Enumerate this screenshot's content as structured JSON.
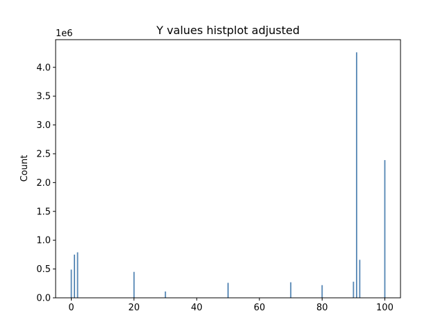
{
  "chart_data": {
    "type": "bar",
    "title": "Y values histplot adjusted",
    "xlabel": "",
    "ylabel": "Count",
    "y_offset_text": "1e6",
    "xlim": [
      -5,
      105
    ],
    "ylim": [
      0,
      4480000
    ],
    "x_ticks": [
      0,
      20,
      40,
      60,
      80,
      100
    ],
    "y_ticks": [
      0.0,
      0.5,
      1.0,
      1.5,
      2.0,
      2.5,
      3.0,
      3.5,
      4.0
    ],
    "y_tick_labels": [
      "0.0",
      "0.5",
      "1.0",
      "1.5",
      "2.0",
      "2.5",
      "3.0",
      "3.5",
      "4.0"
    ],
    "y_scale": 1000000,
    "bin_width": 0.4,
    "bar_color": "#4c7fb0",
    "grid": false,
    "series": [
      {
        "x": [
          0,
          1,
          2,
          20,
          30,
          50,
          70,
          80,
          90,
          91,
          92,
          100
        ],
        "values": [
          490000,
          750000,
          790000,
          450000,
          110000,
          260000,
          270000,
          220000,
          280000,
          4260000,
          660000,
          2390000
        ]
      }
    ]
  }
}
